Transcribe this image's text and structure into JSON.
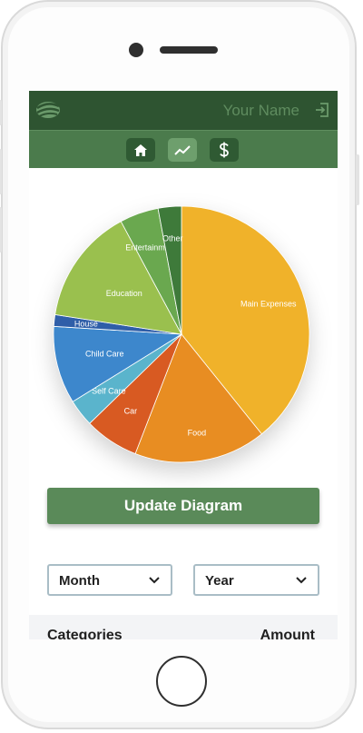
{
  "header": {
    "user_name": "Your Name"
  },
  "nav": {
    "items": [
      {
        "icon": "home-icon",
        "active": false
      },
      {
        "icon": "chart-line-icon",
        "active": true
      },
      {
        "icon": "dollar-icon",
        "active": false
      }
    ]
  },
  "chart_data": {
    "type": "pie",
    "slices": [
      {
        "label": "Main Expenses",
        "value": 40.0,
        "color": "#f0b22a"
      },
      {
        "label": "Food",
        "value": 17.0,
        "color": "#e88d22"
      },
      {
        "label": "Car",
        "value": 7.0,
        "color": "#d85a22"
      },
      {
        "label": "Self Care",
        "value": 3.5,
        "color": "#5ab4cc"
      },
      {
        "label": "Child Care",
        "value": 10.0,
        "color": "#3d87cc"
      },
      {
        "label": "House",
        "value": 1.5,
        "color": "#2f5ea8"
      },
      {
        "label": "Education",
        "value": 15.0,
        "color": "#9ac04e"
      },
      {
        "label": "Entertainment",
        "value": 5.0,
        "color": "#6aa84f"
      },
      {
        "label": "Other",
        "value": 3.0,
        "color": "#3e7a3a"
      }
    ]
  },
  "update_button": "Update Diagram",
  "filters": {
    "month": "Month",
    "year": "Year"
  },
  "table": {
    "col_categories": "Categories",
    "col_amount": "Amount"
  },
  "colors": {
    "topbar": "#2e5431",
    "navbar": "#4b7b4c",
    "accent": "#5a8a59"
  }
}
